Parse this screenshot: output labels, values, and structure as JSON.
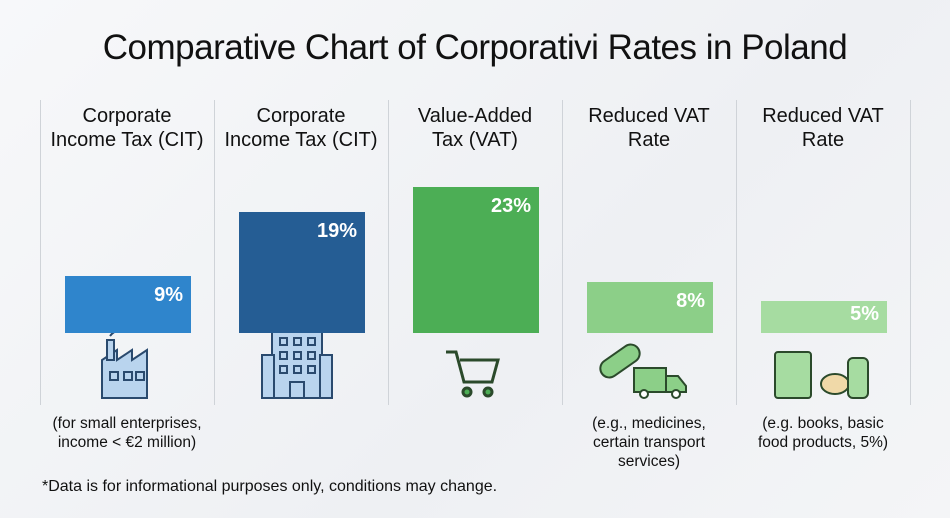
{
  "chart_data": {
    "type": "bar",
    "title": "Comparative Chart of Corporativi Rates in Poland",
    "categories": [
      "Corporate\nIncome Tax (CIT)",
      "Corporate\nIncome Tax (CIT)",
      "Value-Added\nTax (VAT)",
      "Reduced VAT\nRate",
      "Reduced VAT\nRate"
    ],
    "values": [
      9,
      19,
      23,
      8,
      5
    ],
    "value_labels": [
      "9%",
      "19%",
      "23%",
      "8%",
      "5%"
    ],
    "colors": [
      "#2f85cc",
      "#255d94",
      "#4cae55",
      "#8ccf88",
      "#a6dca1"
    ],
    "notes": [
      "(for small enterprises,\nincome < €2 million)",
      null,
      null,
      "(e.g., medicines,\ncertain transport\nservices)",
      "(e.g. books, basic\nfood products, 5%)"
    ],
    "footnote": "*Data is for informational purposes only, conditions may change."
  }
}
